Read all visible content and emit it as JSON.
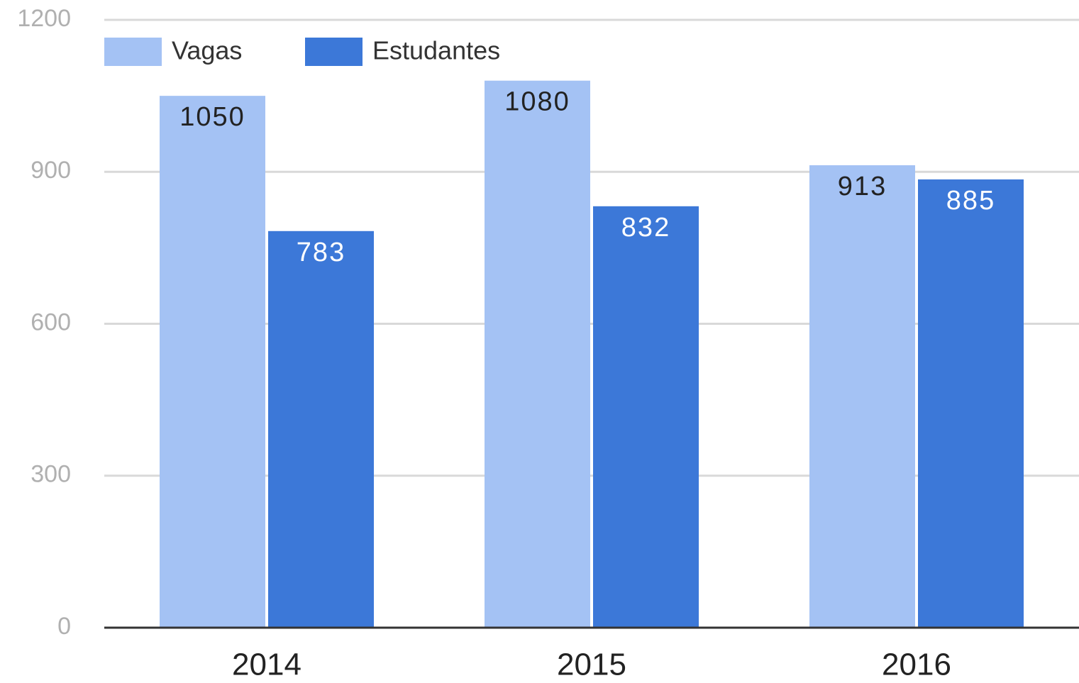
{
  "chart_data": {
    "type": "bar",
    "categories": [
      "2014",
      "2015",
      "2016"
    ],
    "series": [
      {
        "name": "Vagas",
        "color": "#a4c2f4",
        "values": [
          1050,
          1080,
          913
        ]
      },
      {
        "name": "Estudantes",
        "color": "#3c78d8",
        "values": [
          783,
          832,
          885
        ]
      }
    ],
    "ylim": [
      0,
      1200
    ],
    "yticks": [
      0,
      300,
      600,
      900,
      1200
    ],
    "grid": true,
    "legend": "top"
  }
}
